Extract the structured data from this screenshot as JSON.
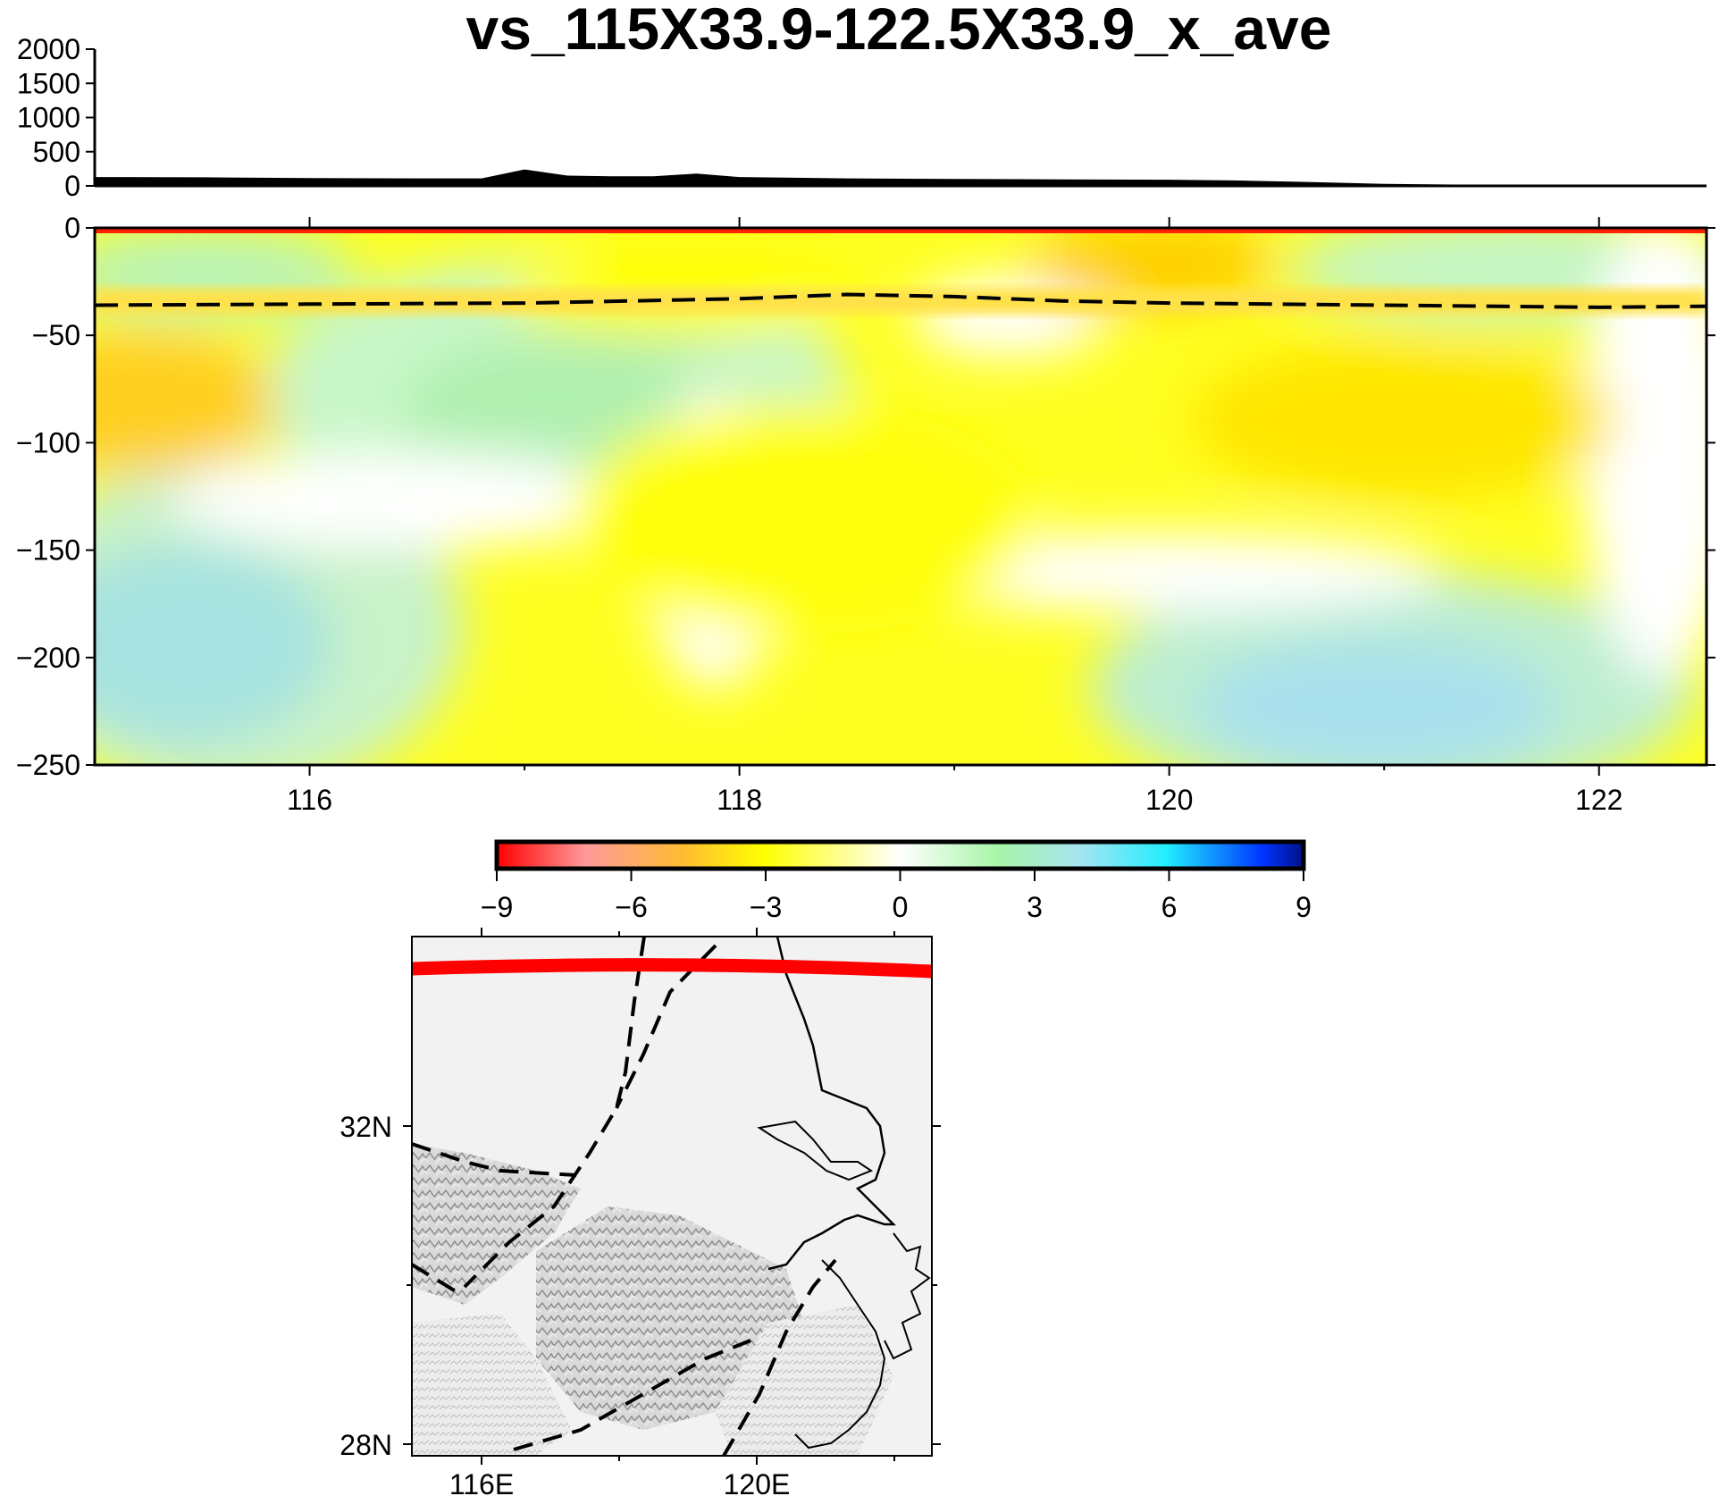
{
  "title": "vs_115X33.9-122.5X33.9_x_ave",
  "topography": {
    "y_ticks": [
      "2000",
      "1500",
      "1000",
      "500",
      "0"
    ],
    "ylim": [
      0,
      2000
    ],
    "profile": [
      [
        115,
        130
      ],
      [
        115.5,
        125
      ],
      [
        116,
        115
      ],
      [
        116.5,
        110
      ],
      [
        116.8,
        110
      ],
      [
        117,
        240
      ],
      [
        117.2,
        150
      ],
      [
        117.4,
        140
      ],
      [
        117.6,
        140
      ],
      [
        117.8,
        180
      ],
      [
        118,
        130
      ],
      [
        118.5,
        110
      ],
      [
        119,
        100
      ],
      [
        119.5,
        95
      ],
      [
        120,
        90
      ],
      [
        120.3,
        80
      ],
      [
        120.6,
        60
      ],
      [
        121,
        30
      ],
      [
        121.5,
        15
      ],
      [
        122.5,
        10
      ]
    ]
  },
  "section": {
    "x_ticks": [
      "116",
      "118",
      "120",
      "122"
    ],
    "y_ticks": [
      "0",
      "−50",
      "−100",
      "−150",
      "−200",
      "−250"
    ],
    "xlim": [
      115,
      122.5
    ],
    "ylim": [
      -250,
      0
    ],
    "moho_line": [
      [
        115,
        -36
      ],
      [
        116,
        -35.5
      ],
      [
        117,
        -35
      ],
      [
        118,
        -33
      ],
      [
        118.5,
        -31
      ],
      [
        119,
        -32
      ],
      [
        119.5,
        -34
      ],
      [
        120,
        -35
      ],
      [
        121,
        -36
      ],
      [
        122,
        -37
      ],
      [
        122.5,
        -36.5
      ]
    ]
  },
  "colorbar": {
    "ticks": [
      "−9",
      "−6",
      "−3",
      "0",
      "3",
      "6",
      "9"
    ],
    "range": [
      -9,
      9
    ],
    "colors": [
      "#ff0000",
      "#ff9a9a",
      "#ffcc00",
      "#ffff00",
      "#ffffff",
      "#a8f5a8",
      "#a8e4f0",
      "#22eeff",
      "#0033ff",
      "#001188"
    ]
  },
  "map": {
    "lat_labels": [
      "32N",
      "28N"
    ],
    "lon_labels": [
      "116E",
      "120E"
    ],
    "profile_color": "#ff0000"
  },
  "chart_data": [
    {
      "type": "area",
      "title": "",
      "xlabel": "",
      "ylabel": "",
      "x": [
        115,
        115.5,
        116,
        116.5,
        116.8,
        117,
        117.2,
        117.4,
        117.6,
        117.8,
        118,
        118.5,
        119,
        119.5,
        120,
        120.3,
        120.6,
        121,
        121.5,
        122.5
      ],
      "y": [
        130,
        125,
        115,
        110,
        110,
        240,
        150,
        140,
        140,
        180,
        130,
        110,
        100,
        95,
        90,
        80,
        60,
        30,
        15,
        10
      ],
      "xlim": [
        115,
        122.5
      ],
      "ylim": [
        0,
        2000
      ]
    },
    {
      "type": "heatmap",
      "title": "vs_115X33.9-122.5X33.9_x_ave",
      "xlabel": "",
      "ylabel": "",
      "xlim": [
        115,
        122.5
      ],
      "ylim": [
        -250,
        0
      ],
      "colorbar_range": [
        -9,
        9
      ],
      "series": [
        {
          "values_x": [
            115,
            116,
            117,
            118,
            119,
            120,
            121,
            122.5
          ],
          "values_y": [
            -36,
            -35.5,
            -35,
            -33,
            -32,
            -35,
            -36,
            -36.5
          ]
        }
      ]
    }
  ]
}
